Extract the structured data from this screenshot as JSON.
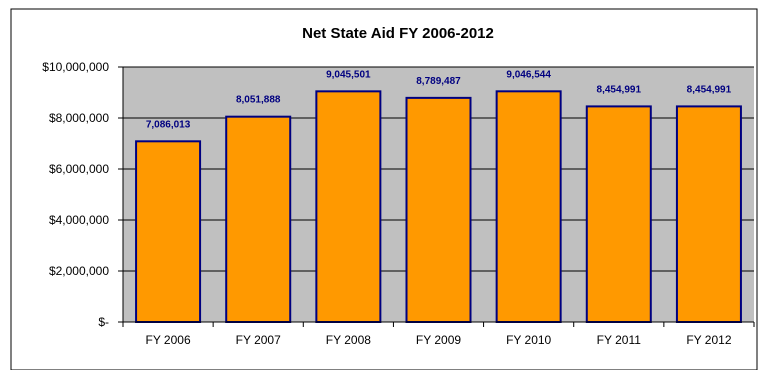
{
  "chart_data": {
    "type": "bar",
    "title": "Net State Aid FY 2006-2012",
    "categories": [
      "FY 2006",
      "FY 2007",
      "FY 2008",
      "FY 2009",
      "FY 2010",
      "FY 2011",
      "FY 2012"
    ],
    "values": [
      7086013,
      8051888,
      9045501,
      8789487,
      9046544,
      8454991,
      8454991
    ],
    "data_labels": [
      "7,086,013",
      "8,051,888",
      "9,045,501",
      "8,789,487",
      "9,046,544",
      "8,454,991",
      "8,454,991"
    ],
    "ylim": [
      0,
      10000000
    ],
    "yticks": [
      {
        "value": 0,
        "label": "$-"
      },
      {
        "value": 2000000,
        "label": "$2,000,000"
      },
      {
        "value": 4000000,
        "label": "$4,000,000"
      },
      {
        "value": 6000000,
        "label": "$6,000,000"
      },
      {
        "value": 8000000,
        "label": "$8,000,000"
      },
      {
        "value": 10000000,
        "label": "$10,000,000"
      }
    ],
    "grid": true,
    "legend": "none",
    "colors": {
      "bar_fill": "#FF9900",
      "bar_stroke": "#000080",
      "plot_background": "#C0C0C0",
      "gridline": "#000000",
      "data_label": "#000080"
    }
  }
}
